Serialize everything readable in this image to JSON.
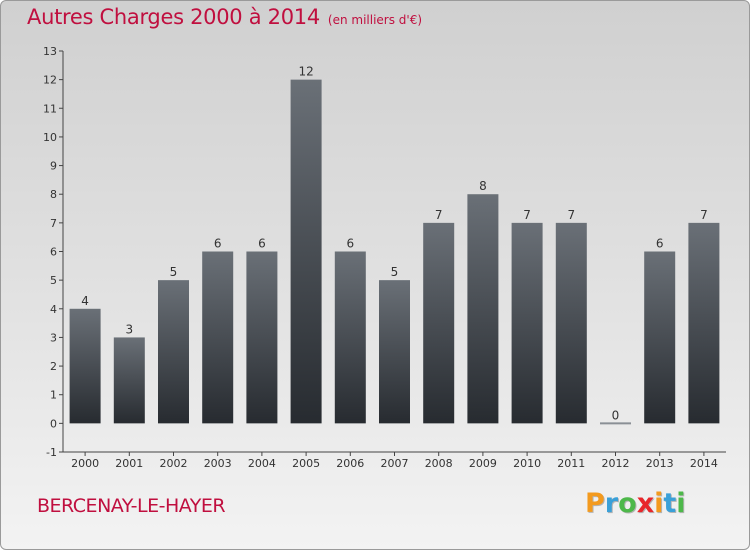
{
  "header": {
    "title": "Autres Charges 2000 à 2014",
    "unit": "(en milliers d'€)"
  },
  "footer": {
    "commune": "BERCENAY-LE-HAYER",
    "logo_letters": [
      "P",
      "r",
      "o",
      "x",
      "i",
      "t",
      "i"
    ],
    "logo_colors": [
      "#f39a1e",
      "#3aa0d8",
      "#4db84a",
      "#e8262b",
      "#f39a1e",
      "#3aa0d8",
      "#4db84a"
    ]
  },
  "chart_data": {
    "type": "bar",
    "title": "Autres Charges 2000 à 2014",
    "subtitle": "(en milliers d'€)",
    "xlabel": "",
    "ylabel": "",
    "categories": [
      "2000",
      "2001",
      "2002",
      "2003",
      "2004",
      "2005",
      "2006",
      "2007",
      "2008",
      "2009",
      "2010",
      "2011",
      "2012",
      "2013",
      "2014"
    ],
    "values": [
      4,
      3,
      5,
      6,
      6,
      12,
      6,
      5,
      7,
      8,
      7,
      7,
      0,
      6,
      7
    ],
    "value_labels": [
      "4",
      "3",
      "5",
      "6",
      "6",
      "12",
      "6",
      "5",
      "7",
      "8",
      "7",
      "7",
      "0",
      "6",
      "7"
    ],
    "ylim": [
      -1,
      13
    ],
    "yticks": [
      -1,
      0,
      1,
      2,
      3,
      4,
      5,
      6,
      7,
      8,
      9,
      10,
      11,
      12,
      13
    ],
    "grid": false,
    "legend": "none",
    "bar_color": "#2e3338"
  }
}
